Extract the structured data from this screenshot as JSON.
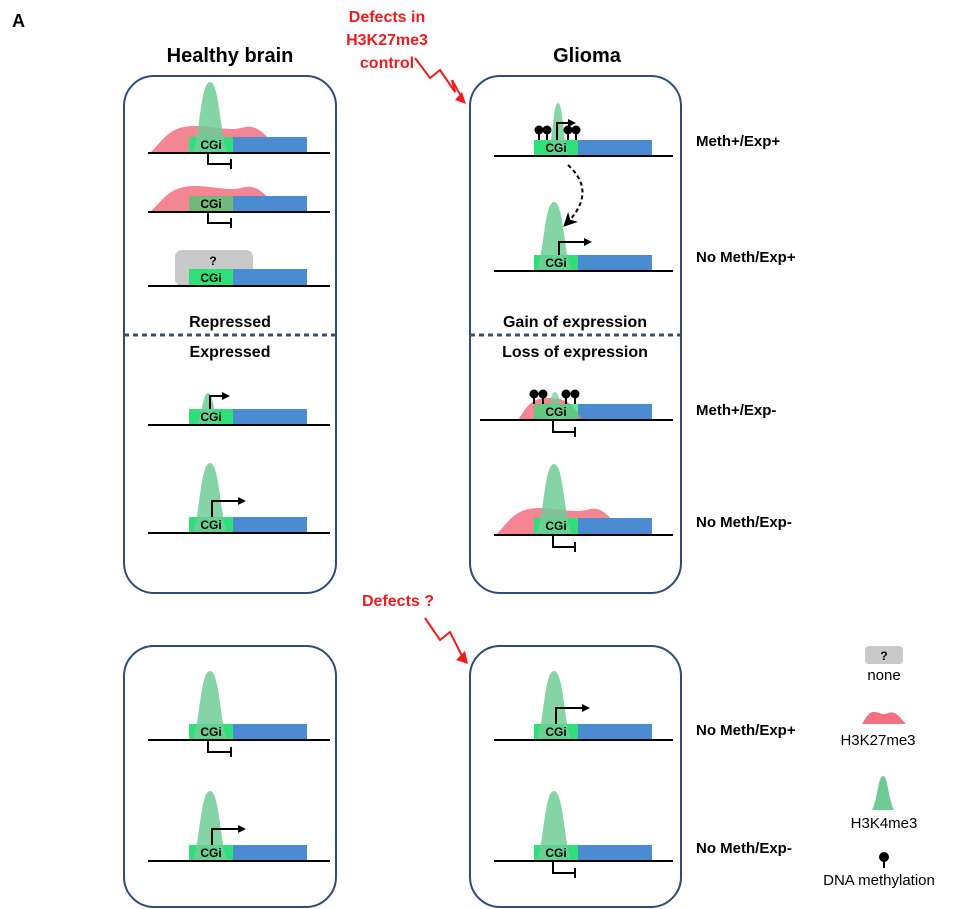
{
  "panel_label": "A",
  "headers": {
    "healthy": "Healthy brain",
    "glioma": "Glioma"
  },
  "annotations": {
    "defects_top": [
      "Defects in",
      "H3K27me3",
      "control"
    ],
    "defects_bottom": "Defects ?"
  },
  "dividers": {
    "healthy_above": "Repressed",
    "healthy_below": "Expressed",
    "glioma_above": "Gain of expression",
    "glioma_below": "Loss of expression"
  },
  "cgi_label": "CGi",
  "unknown_mark": "?",
  "row_labels": {
    "top_1": "Meth+/Exp+",
    "top_2": "No Meth/Exp+",
    "top_3": "Meth+/Exp-",
    "top_4": "No Meth/Exp-",
    "bottom_1": "No Meth/Exp+",
    "bottom_2": "No Meth/Exp-"
  },
  "legend": {
    "none_symbol": "?",
    "none": "none",
    "h3k27me3": "H3K27me3",
    "h3k4me3": "H3K4me3",
    "dna_methylation": "DNA methylation"
  },
  "colors": {
    "panel_border": "#2f4b7c",
    "divider": "#3d4f6a",
    "cgi": "#2fe07a",
    "gene_body": "#4a8bd2",
    "h3k4me3": "#6fcc96",
    "h3k27me3": "#f2707f",
    "none_box": "#c9c9c9",
    "defect_text": "#ee1c1c"
  }
}
